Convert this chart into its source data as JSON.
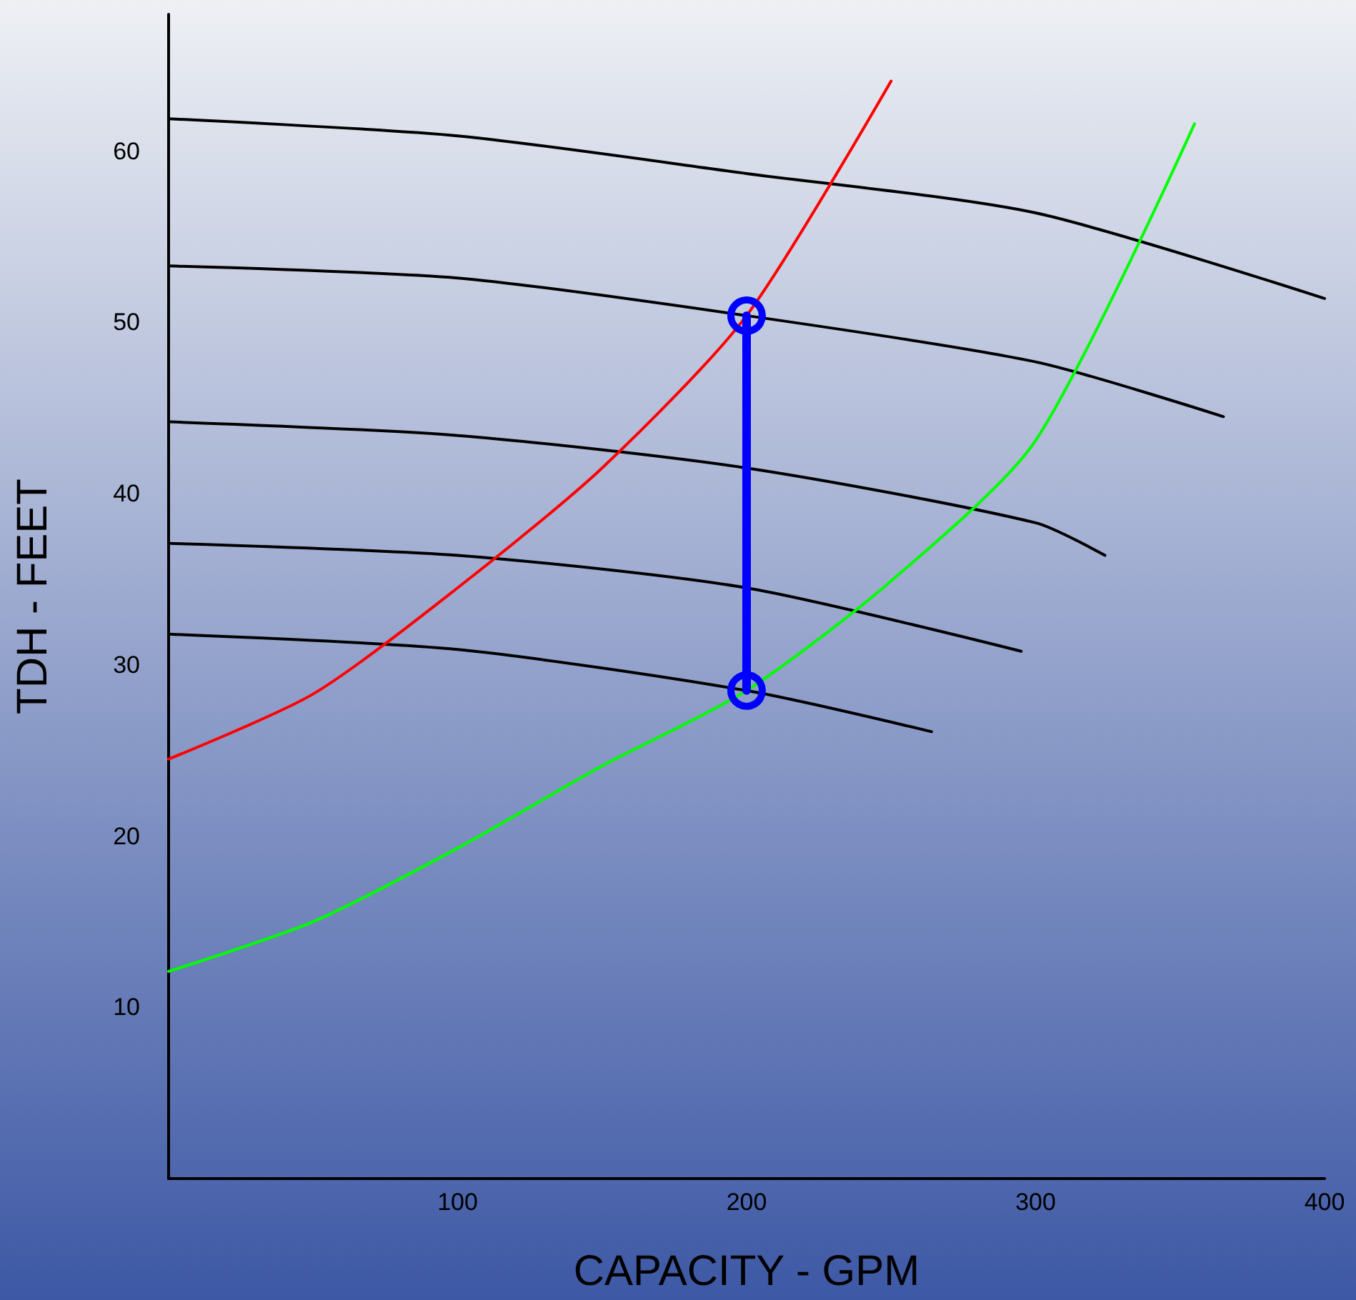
{
  "chart_data": {
    "type": "line",
    "xlabel": "CAPACITY - GPM",
    "ylabel": "TDH - FEET",
    "xlim": [
      0,
      400
    ],
    "ylim": [
      0,
      68
    ],
    "xticks": [
      100,
      200,
      300,
      400
    ],
    "yticks": [
      10,
      20,
      30,
      40,
      50,
      60
    ],
    "grid": false,
    "marker": "none",
    "line_style": "solid",
    "series": [
      {
        "color": "#000000",
        "x": [
          0,
          100,
          200,
          300,
          400
        ],
        "values": [
          61.9,
          60.9,
          58.7,
          56.4,
          51.4
        ]
      },
      {
        "color": "#000000",
        "x": [
          0,
          100,
          200,
          300,
          365
        ],
        "values": [
          53.3,
          52.6,
          50.4,
          47.7,
          44.5
        ]
      },
      {
        "color": "#000000",
        "x": [
          0,
          100,
          200,
          300,
          324
        ],
        "values": [
          44.2,
          43.4,
          41.5,
          38.3,
          36.4
        ]
      },
      {
        "color": "#000000",
        "x": [
          0,
          100,
          200,
          295
        ],
        "values": [
          37.1,
          36.4,
          34.5,
          30.8
        ]
      },
      {
        "color": "#000000",
        "x": [
          0,
          100,
          200,
          264
        ],
        "values": [
          31.8,
          30.9,
          28.5,
          26.1
        ]
      },
      {
        "color": "#ff0000",
        "x": [
          0,
          50,
          100,
          150,
          200,
          250
        ],
        "values": [
          24.5,
          28.3,
          34.5,
          41.5,
          50.4,
          64.1
        ]
      },
      {
        "color": "#00ff00",
        "x": [
          0,
          50,
          100,
          150,
          200,
          250,
          300,
          355
        ],
        "values": [
          12.1,
          15.0,
          19.3,
          24.1,
          28.5,
          34.9,
          43.1,
          61.6
        ]
      },
      {
        "color": "#0000ff",
        "x": [
          200,
          200
        ],
        "values": [
          28.5,
          50.4
        ],
        "marker": "circle"
      }
    ]
  }
}
